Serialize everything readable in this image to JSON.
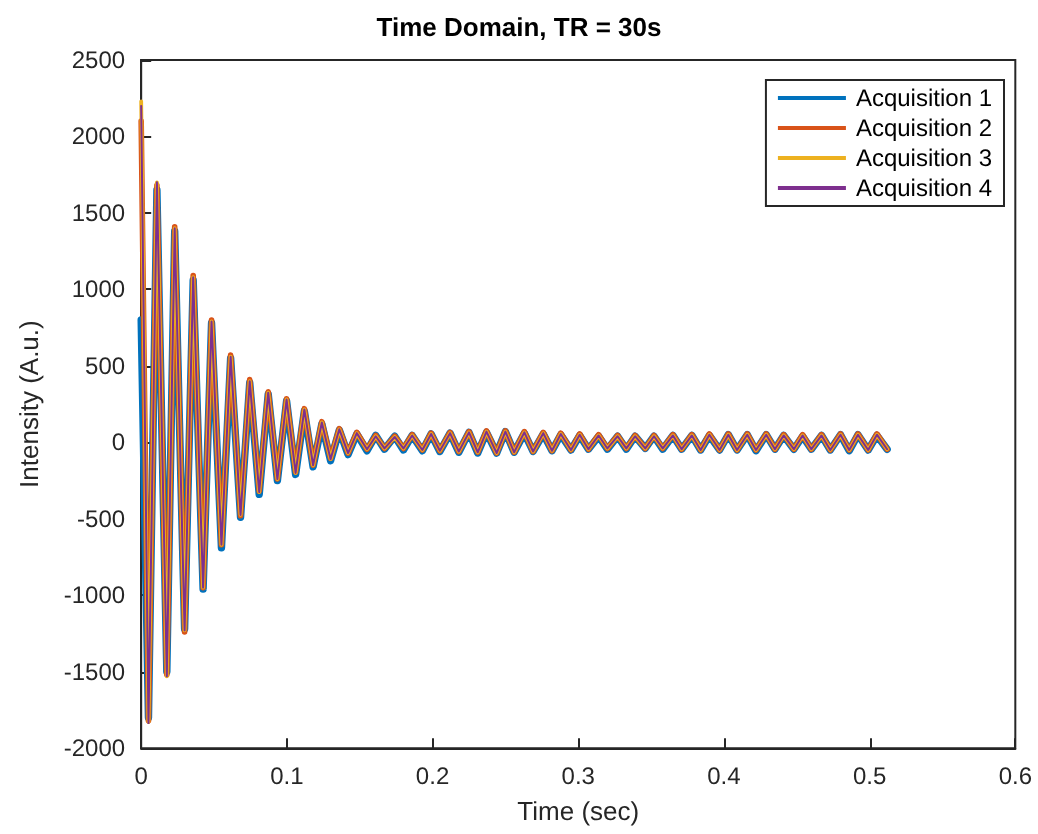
{
  "chart_data": {
    "type": "line",
    "title": "Time Domain, TR = 30s",
    "xlabel": "Time (sec)",
    "ylabel": "Intensity (A.u.)",
    "x": [
      0,
      0.005,
      0.0108,
      0.0176,
      0.023,
      0.0298,
      0.0357,
      0.0425,
      0.0483,
      0.0551,
      0.0614,
      0.0682,
      0.0745,
      0.081,
      0.0872,
      0.0935,
      0.0998,
      0.106,
      0.112,
      0.118,
      0.124,
      0.13,
      0.136,
      0.142,
      0.148,
      0.155,
      0.161,
      0.167,
      0.174,
      0.18,
      0.186,
      0.193,
      0.199,
      0.205,
      0.212,
      0.218,
      0.225,
      0.231,
      0.237,
      0.244,
      0.25,
      0.256,
      0.263,
      0.269,
      0.276,
      0.282,
      0.288,
      0.295,
      0.301,
      0.307,
      0.314,
      0.32,
      0.327,
      0.333,
      0.339,
      0.346,
      0.352,
      0.358,
      0.365,
      0.371,
      0.378,
      0.384,
      0.39,
      0.397,
      0.403,
      0.409,
      0.416,
      0.422,
      0.429,
      0.435,
      0.441,
      0.448,
      0.454,
      0.46,
      0.467,
      0.473,
      0.48,
      0.486,
      0.492,
      0.499,
      0.505,
      0.512
    ],
    "series": [
      {
        "name": "Acquisition 1",
        "color": "#0072bd",
        "values": [
          800,
          -1800,
          1650,
          -1500,
          1380,
          -1220,
          1060,
          -960,
          780,
          -690,
          550,
          -490,
          390,
          -340,
          315,
          -250,
          270,
          -210,
          205,
          -160,
          120,
          -120,
          80,
          -80,
          55,
          -55,
          45,
          -45,
          40,
          -50,
          45,
          -55,
          55,
          -60,
          60,
          -65,
          65,
          -70,
          65,
          -70,
          70,
          -65,
          60,
          -60,
          55,
          -55,
          50,
          -50,
          45,
          -45,
          40,
          -45,
          40,
          -45,
          40,
          -40,
          40,
          -45,
          45,
          -45,
          45,
          -50,
          45,
          -50,
          50,
          -50,
          50,
          -55,
          50,
          -45,
          45,
          -45,
          40,
          -45,
          45,
          -50,
          50,
          -55,
          50,
          -50,
          45,
          -45
        ]
      },
      {
        "name": "Acquisition 2",
        "color": "#d95319",
        "values": [
          2100,
          -1820,
          1680,
          -1520,
          1410,
          -1240,
          1090,
          -950,
          800,
          -670,
          570,
          -480,
          410,
          -320,
          330,
          -240,
          285,
          -195,
          220,
          -150,
          135,
          -105,
          90,
          -70,
          65,
          -45,
          45,
          -40,
          40,
          -40,
          50,
          -50,
          60,
          -55,
          65,
          -60,
          70,
          -65,
          75,
          -70,
          75,
          -65,
          70,
          -60,
          65,
          -55,
          60,
          -50,
          55,
          -45,
          50,
          -40,
          45,
          -40,
          45,
          -40,
          45,
          -40,
          50,
          -45,
          50,
          -50,
          55,
          -50,
          55,
          -50,
          55,
          -50,
          55,
          -45,
          50,
          -45,
          50,
          -45,
          50,
          -50,
          55,
          -50,
          55,
          -50,
          55,
          -45
        ]
      },
      {
        "name": "Acquisition 3",
        "color": "#edb120",
        "values": [
          2230,
          -1830,
          1700,
          -1530,
          1400,
          -1230,
          1080,
          -950,
          790,
          -670,
          560,
          -475,
          400,
          -325,
          325,
          -240,
          280,
          -200,
          215,
          -150,
          130,
          -110,
          85,
          -70,
          60,
          -45,
          40,
          -40,
          35,
          -40,
          45,
          -50,
          55,
          -55,
          60,
          -60,
          65,
          -65,
          70,
          -70,
          70,
          -65,
          65,
          -60,
          60,
          -55,
          55,
          -50,
          50,
          -45,
          45,
          -40,
          40,
          -40,
          40,
          -40,
          40,
          -40,
          45,
          -45,
          45,
          -50,
          50,
          -50,
          50,
          -50,
          50,
          -50,
          50,
          -45,
          45,
          -45,
          45,
          -45,
          45,
          -50,
          50,
          -50,
          50,
          -50,
          50,
          -45
        ]
      },
      {
        "name": "Acquisition 4",
        "color": "#7e2f8e",
        "values": [
          2200,
          -1836,
          1700,
          -1530,
          1400,
          -1230,
          1080,
          -950,
          790,
          -670,
          560,
          -475,
          400,
          -325,
          325,
          -240,
          280,
          -200,
          215,
          -150,
          130,
          -110,
          85,
          -70,
          60,
          -45,
          40,
          -40,
          35,
          -40,
          45,
          -50,
          55,
          -55,
          60,
          -60,
          65,
          -65,
          70,
          -70,
          70,
          -65,
          65,
          -60,
          60,
          -55,
          55,
          -50,
          50,
          -45,
          45,
          -40,
          40,
          -40,
          40,
          -40,
          40,
          -40,
          45,
          -45,
          45,
          -50,
          50,
          -50,
          50,
          -50,
          50,
          -50,
          50,
          -45,
          45,
          -45,
          45,
          -45,
          45,
          -50,
          50,
          -50,
          50,
          -50,
          50,
          -45
        ]
      }
    ],
    "xlim": [
      0,
      0.6
    ],
    "xticks": [
      0,
      0.1,
      0.2,
      0.3,
      0.4,
      0.5,
      0.6
    ],
    "ylim": [
      -2000,
      2500
    ],
    "yticks": [
      -2000,
      -1500,
      -1000,
      -500,
      0,
      500,
      1000,
      1500,
      2000,
      2500
    ],
    "legend": "top right",
    "grid": false,
    "marker": "none",
    "line_style": "solid"
  }
}
